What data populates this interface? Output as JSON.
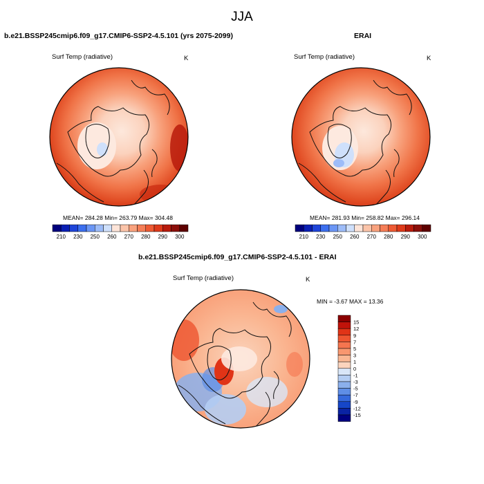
{
  "figure": {
    "season": "JJA"
  },
  "panels": [
    {
      "title": "b.e21.BSSP245cmip6.f09_g17.CMIP6-SSP2-4.5.101 (yrs 2075-2099)",
      "variable": "Surf Temp (radiative)",
      "units": "K",
      "stats": "MEAN= 284.28  Min= 263.79  Max= 304.48"
    },
    {
      "title": "ERAI",
      "variable": "Surf Temp (radiative)",
      "units": "K",
      "stats": "MEAN= 281.93  Min= 258.82  Max= 296.14"
    },
    {
      "title": "b.e21.BSSP245cmip6.f09_g17.CMIP6-SSP2-4.5.101 - ERAI",
      "variable": "Surf Temp (radiative)",
      "units": "K",
      "stats": "MIN =  -3.67 MAX =  13.36"
    }
  ],
  "abs_colorbar": {
    "labels": [
      "210",
      "230",
      "250",
      "260",
      "270",
      "280",
      "290",
      "300"
    ],
    "colors": [
      "#00007d",
      "#0a1fb4",
      "#1f45d9",
      "#3c6fee",
      "#6b96f5",
      "#9dbcf8",
      "#cfe0fb",
      "#fde4d8",
      "#fbc4a9",
      "#f9a27e",
      "#f57e57",
      "#ee5a33",
      "#de3a1a",
      "#b81b0c",
      "#8b0f0a",
      "#5e0000"
    ]
  },
  "diff_colorbar": {
    "labels": [
      "15",
      "12",
      "9",
      "7",
      "5",
      "3",
      "1",
      "0",
      "-1",
      "-3",
      "-5",
      "-7",
      "-9",
      "-12",
      "-15"
    ],
    "colors": [
      "#8b0000",
      "#c0130a",
      "#e03417",
      "#ee5530",
      "#f5754f",
      "#f8976f",
      "#fab793",
      "#fbd4bd",
      "#d9e6f8",
      "#b4cdf3",
      "#8bb0ec",
      "#5f8ee6",
      "#3669dc",
      "#1646c8",
      "#0a23a3",
      "#000080"
    ]
  }
}
